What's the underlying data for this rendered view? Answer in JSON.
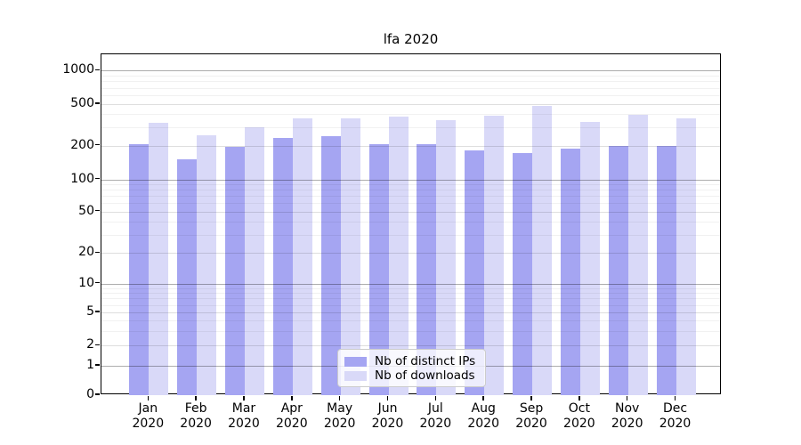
{
  "chart_data": {
    "type": "bar",
    "title": "lfa 2020",
    "categories": [
      "Jan",
      "Feb",
      "Mar",
      "Apr",
      "May",
      "Jun",
      "Jul",
      "Aug",
      "Sep",
      "Oct",
      "Nov",
      "Dec"
    ],
    "x_year_label": "2020",
    "series": [
      {
        "name": "Nb of distinct IPs",
        "color": "#a5a5f2",
        "values": [
          205,
          150,
          195,
          235,
          245,
          205,
          208,
          180,
          172,
          190,
          200,
          198
        ]
      },
      {
        "name": "Nb of downloads",
        "color": "#d9d9f8",
        "values": [
          330,
          250,
          300,
          365,
          365,
          380,
          348,
          390,
          480,
          335,
          395,
          365
        ]
      }
    ],
    "y_axis": {
      "scale": "symlog",
      "tick_values": [
        1000,
        500,
        200,
        100,
        50,
        20,
        10,
        5,
        2,
        1,
        0
      ],
      "tick_labels": [
        "1000",
        "500",
        "200",
        "100",
        "50",
        "20",
        "10",
        "5",
        "2",
        "1",
        "0"
      ],
      "minor_grid_values": [
        3,
        4,
        6,
        7,
        8,
        9,
        30,
        40,
        60,
        70,
        80,
        90,
        300,
        400,
        600,
        700,
        800,
        900
      ]
    },
    "xlabel": "",
    "ylabel": "",
    "grid": true,
    "legend_position": "lower-center"
  }
}
